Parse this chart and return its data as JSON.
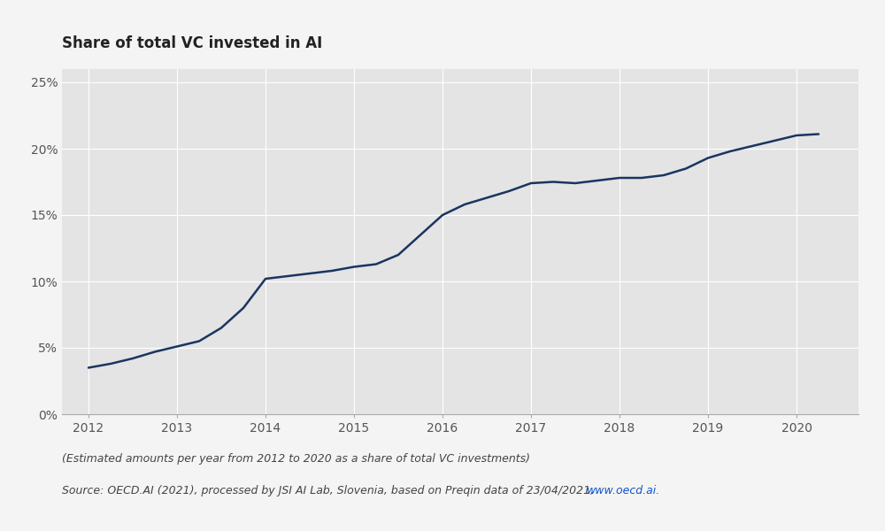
{
  "title": "Share of total VC invested in AI",
  "x_values": [
    2012.0,
    2012.25,
    2012.5,
    2012.75,
    2013.0,
    2013.25,
    2013.5,
    2013.75,
    2014.0,
    2014.25,
    2014.5,
    2014.75,
    2015.0,
    2015.25,
    2015.5,
    2015.75,
    2016.0,
    2016.25,
    2016.5,
    2016.75,
    2017.0,
    2017.25,
    2017.5,
    2017.75,
    2018.0,
    2018.25,
    2018.5,
    2018.75,
    2019.0,
    2019.25,
    2019.5,
    2019.75,
    2020.0,
    2020.25
  ],
  "y_values": [
    3.5,
    3.8,
    4.2,
    4.7,
    5.1,
    5.5,
    6.5,
    8.0,
    10.2,
    10.4,
    10.6,
    10.8,
    11.1,
    11.3,
    12.0,
    13.5,
    15.0,
    15.8,
    16.3,
    16.8,
    17.4,
    17.5,
    17.4,
    17.6,
    17.8,
    17.8,
    18.0,
    18.5,
    19.3,
    19.8,
    20.2,
    20.6,
    21.0,
    21.1
  ],
  "line_color": "#1a3560",
  "line_width": 1.8,
  "bg_color": "#e4e4e4",
  "outer_bg": "#f4f4f4",
  "xlim": [
    2011.7,
    2020.7
  ],
  "ylim": [
    0,
    26
  ],
  "yticks": [
    0,
    5,
    10,
    15,
    20,
    25
  ],
  "ytick_labels": [
    "0%",
    "5%",
    "10%",
    "15%",
    "20%",
    "25%"
  ],
  "xticks": [
    2012,
    2013,
    2014,
    2015,
    2016,
    2017,
    2018,
    2019,
    2020
  ],
  "grid_color": "#ffffff",
  "title_fontsize": 12,
  "tick_fontsize": 10,
  "caption_line1": "(Estimated amounts per year from 2012 to 2020 as a share of total VC investments)",
  "caption_line2_before_url": "Source: OECD.AI (2021), processed by JSI AI Lab, Slovenia, based on Preqin data of 23/04/2021, ",
  "caption_url": "www.oecd.ai",
  "caption_after_url": ".",
  "caption_fontsize": 9,
  "caption_color": "#444444",
  "url_color": "#1155cc"
}
